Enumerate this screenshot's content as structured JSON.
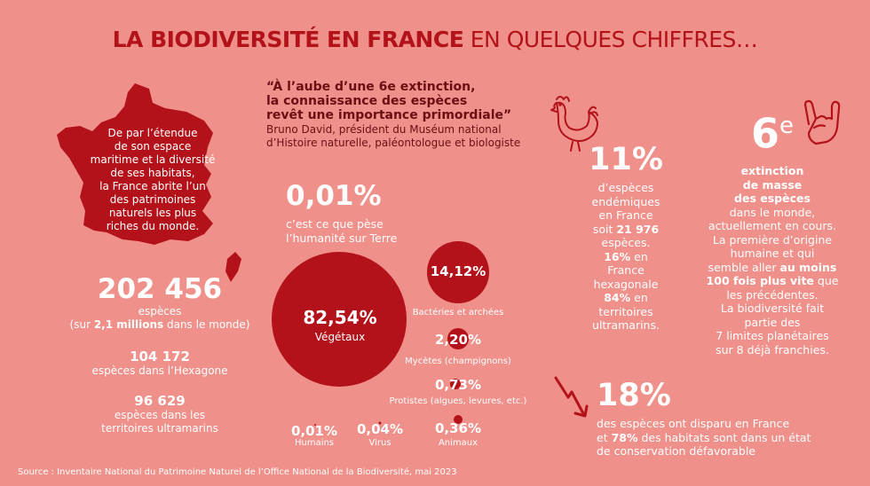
{
  "title": {
    "bold": "LA BIODIVERSITÉ EN FRANCE",
    "light": "EN QUELQUES CHIFFRES…"
  },
  "quote": {
    "line1": "“À l’aube d’une 6e extinction,",
    "line2": "la connaissance des espèces",
    "line3": "revêt une importance primordiale”",
    "author1": "Bruno David, président du Muséum national",
    "author2": "d’Histoire naturelle, paléontologue et biologiste"
  },
  "france": {
    "lines": [
      "De par l’étendue",
      "de son espace",
      "maritime et la diversité",
      "de ses habitats,",
      "la France abrite l’un",
      "des patrimoines",
      "naturels les plus",
      "riches du monde."
    ]
  },
  "species": {
    "total_value": "202 456",
    "total_label": "espèces",
    "world_pre": "(sur ",
    "world_bold": "2,1 millions",
    "world_post": " dans le monde)",
    "hexagone_value": "104 172",
    "hexagone_label": "espèces dans l’Hexagone",
    "outremer_value": "96 629",
    "outremer_label1": "espèces dans les",
    "outremer_label2": "territoires ultramarins"
  },
  "humanity": {
    "value": "0,01%",
    "line1": "c’est ce que pèse",
    "line2": "l’humanité sur Terre"
  },
  "biomass": {
    "vegetaux": {
      "value": "82,54%",
      "label": "Végétaux",
      "pct": 82.54
    },
    "bacteries": {
      "value": "14,12%",
      "label": "Bactéries et archées",
      "pct": 14.12
    },
    "mycetes": {
      "value": "2,20%",
      "label": "Mycètes (champignons)",
      "pct": 2.2
    },
    "protistes": {
      "value": "0,73%",
      "label": "Protistes (algues, levures, etc.)",
      "pct": 0.73
    },
    "humains": {
      "value": "0,01%",
      "label": "Humains",
      "pct": 0.01
    },
    "virus": {
      "value": "0,04%",
      "label": "Virus",
      "pct": 0.04
    },
    "animaux": {
      "value": "0,36%",
      "label": "Animaux",
      "pct": 0.36
    }
  },
  "endemic": {
    "value": "11%",
    "lines": [
      "d’espèces",
      "endémiques",
      "en France"
    ],
    "soit": "soit ",
    "count": "21 976",
    "especes": "espèces.",
    "p16": "16%",
    "en": " en",
    "france": "France",
    "hexagonale": "hexagonale",
    "p84": "84%",
    "en2": " en",
    "territoires": "territoires",
    "ultramarins": "ultramarins."
  },
  "extinction": {
    "value": "6",
    "sup": "e",
    "bold1": "extinction",
    "bold2": "de masse",
    "bold3": "des espèces",
    "l1": "dans le monde,",
    "l2": "actuellement en cours.",
    "l3": "La première d’origine",
    "l4": "humaine et qui",
    "l5pre": "semble aller ",
    "l5bold": "au moins",
    "l6bold": "100 fois plus vite",
    "l6post": " que",
    "l7": "les précédentes.",
    "l8": "La biodiversité fait",
    "l9": "partie des",
    "l10": "7 limites planétaires",
    "l11": "sur 8 déjà franchies."
  },
  "disappeared": {
    "value": "18%",
    "line1": "des espèces ont disparu en France",
    "line2pre": "et ",
    "line2bold": "78%",
    "line2post": " des habitats sont dans un état",
    "line3": "de conservation défavorable"
  },
  "source": "Source : Inventaire National du Patrimoine Naturel de l’Office National de la Biodiversité, mai 2023",
  "colors": {
    "background": "#ef908a",
    "accent": "#b3121a",
    "text": "#ffffff",
    "quote": "#6b0f14"
  },
  "icons": [
    "france-map-icon",
    "rooster-icon",
    "rock-hand-icon",
    "down-arrow-icon"
  ]
}
